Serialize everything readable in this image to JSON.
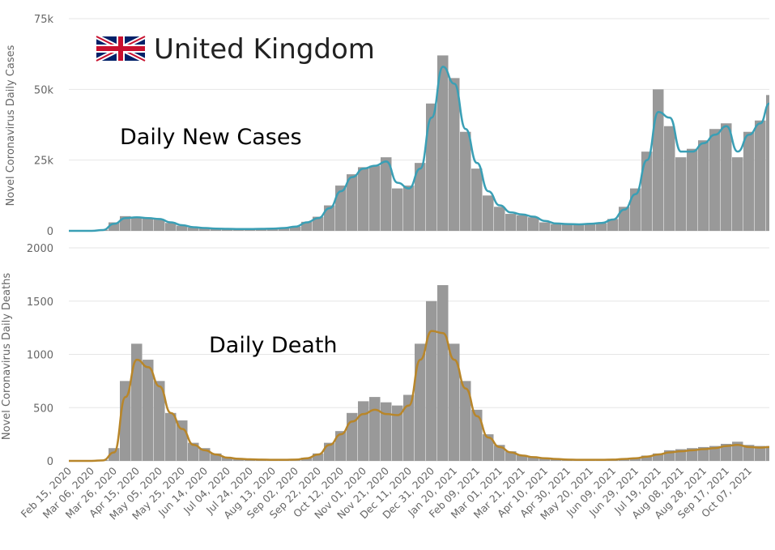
{
  "header": {
    "title": "United Kingdom",
    "flag_icon": "uk-flag-icon"
  },
  "colors": {
    "bars": "#999999",
    "cases_line": "#3a9fb5",
    "deaths_line": "#b8862a",
    "grid": "#e6e6e6"
  },
  "chart_data": [
    {
      "type": "bar",
      "annotation": "Daily New Cases",
      "ylabel": "Novel Coronavirus Daily Cases",
      "ylim": [
        0,
        75000
      ],
      "yticks": [
        0,
        25000,
        50000,
        75000
      ],
      "ytick_labels": [
        "0",
        "25k",
        "50k",
        "75k"
      ],
      "grid": true,
      "x_start": "Feb 15, 2020",
      "x_step_days": 10,
      "series": [
        {
          "kind": "bar",
          "values": [
            0,
            0,
            0,
            400,
            3000,
            5200,
            5000,
            4700,
            4000,
            2800,
            1800,
            1200,
            900,
            700,
            600,
            600,
            600,
            650,
            750,
            950,
            1500,
            3200,
            5000,
            9000,
            16000,
            20000,
            22500,
            23000,
            26000,
            15000,
            16000,
            24000,
            45000,
            62000,
            54000,
            35000,
            22000,
            12500,
            8500,
            6000,
            5500,
            4800,
            3000,
            2400,
            2200,
            2100,
            2400,
            2700,
            4200,
            8500,
            15000,
            28000,
            50000,
            37000,
            26000,
            29000,
            32000,
            36000,
            38000,
            26000,
            35000,
            39000,
            48000
          ]
        },
        {
          "kind": "line",
          "values": [
            0,
            0,
            0,
            300,
            2500,
            4500,
            4800,
            4500,
            4200,
            3000,
            2000,
            1300,
            1000,
            800,
            700,
            650,
            650,
            700,
            800,
            1000,
            1500,
            3000,
            4500,
            8000,
            14000,
            19000,
            22000,
            23000,
            24500,
            17000,
            15000,
            22000,
            40000,
            58000,
            52000,
            36000,
            24000,
            14000,
            9000,
            6500,
            5800,
            5000,
            3500,
            2600,
            2400,
            2300,
            2500,
            2800,
            4000,
            7500,
            13000,
            25000,
            42000,
            40000,
            28000,
            28000,
            31000,
            34000,
            37000,
            28000,
            34000,
            38000,
            45000
          ]
        }
      ]
    },
    {
      "type": "bar",
      "annotation": "Daily Death",
      "ylabel": "Novel Coronavirus Daily Deaths",
      "ylim": [
        0,
        2000
      ],
      "yticks": [
        0,
        500,
        1000,
        1500,
        2000
      ],
      "ytick_labels": [
        "0",
        "500",
        "1000",
        "1500",
        "2000"
      ],
      "grid": true,
      "x_start": "Feb 15, 2020",
      "x_step_days": 10,
      "series": [
        {
          "kind": "bar",
          "values": [
            0,
            0,
            0,
            10,
            120,
            750,
            1100,
            950,
            750,
            450,
            380,
            170,
            120,
            70,
            35,
            20,
            15,
            12,
            10,
            10,
            14,
            30,
            70,
            170,
            280,
            450,
            560,
            600,
            550,
            520,
            620,
            1100,
            1500,
            1650,
            1100,
            750,
            480,
            250,
            150,
            90,
            55,
            35,
            25,
            18,
            12,
            10,
            10,
            10,
            12,
            20,
            30,
            50,
            70,
            100,
            110,
            120,
            130,
            140,
            160,
            180,
            150,
            140,
            140
          ]
        },
        {
          "kind": "line",
          "values": [
            0,
            0,
            0,
            5,
            80,
            600,
            950,
            880,
            700,
            450,
            300,
            150,
            100,
            60,
            30,
            20,
            15,
            12,
            10,
            10,
            12,
            25,
            60,
            150,
            250,
            370,
            440,
            480,
            440,
            430,
            520,
            950,
            1220,
            1200,
            950,
            680,
            420,
            220,
            130,
            80,
            50,
            35,
            25,
            18,
            12,
            10,
            10,
            10,
            12,
            18,
            25,
            40,
            60,
            80,
            90,
            100,
            110,
            120,
            140,
            150,
            130,
            125,
            130
          ]
        }
      ]
    }
  ],
  "x_tick_labels": [
    "Feb 15, 2020",
    "Mar 06, 2020",
    "Mar 26, 2020",
    "Apr 15, 2020",
    "May 05, 2020",
    "May 25, 2020",
    "Jun 14, 2020",
    "Jul 04, 2020",
    "Jul 24, 2020",
    "Aug 13, 2020",
    "Sep 02, 2020",
    "Sep 22, 2020",
    "Oct 12, 2020",
    "Nov 01, 2020",
    "Nov 21, 2020",
    "Dec 11, 2020",
    "Dec 31, 2020",
    "Jan 20, 2021",
    "Feb 09, 2021",
    "Mar 01, 2021",
    "Mar 21, 2021",
    "Apr 10, 2021",
    "Apr 30, 2021",
    "May 20, 2021",
    "Jun 09, 2021",
    "Jun 29, 2021",
    "Jul 19, 2021",
    "Aug 08, 2021",
    "Aug 28, 2021",
    "Sep 17, 2021",
    "Oct 07, 2021"
  ]
}
